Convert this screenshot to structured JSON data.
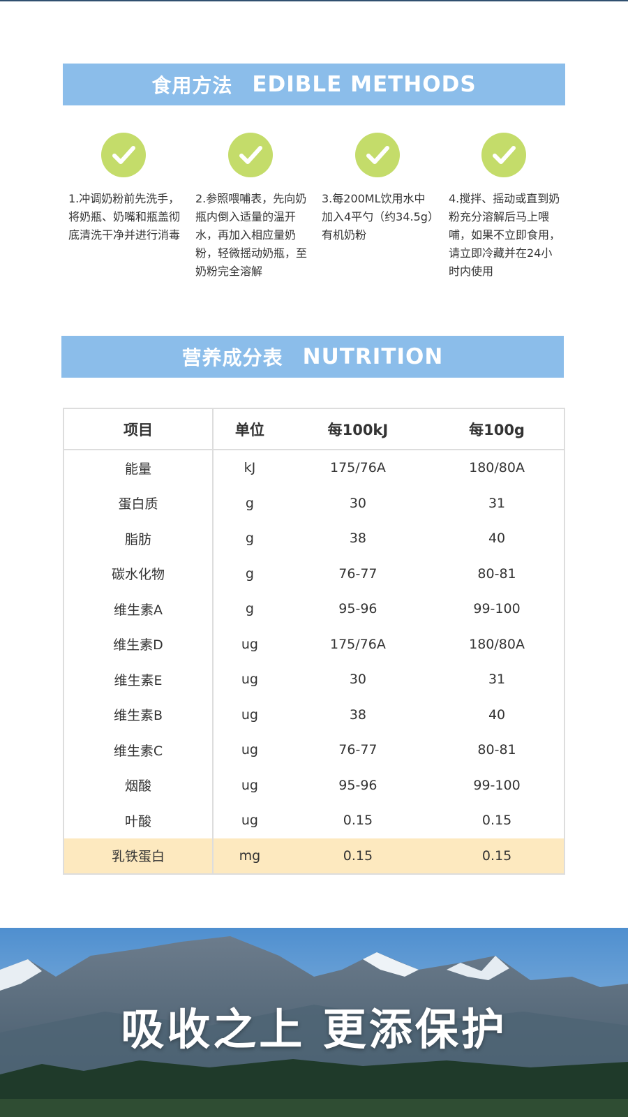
{
  "methods": {
    "title": "食用方法",
    "title_en": "EDIBLE METHODS",
    "steps": [
      "1.冲调奶粉前先洗手，将奶瓶、奶嘴和瓶盖彻底清洗干净并进行消毒",
      "2.参照喂哺表，先向奶瓶内倒入适量的温开水，再加入相应量奶粉，轻微摇动奶瓶，至奶粉完全溶解",
      "3.每200ML饮用水中加入4平勺（约34.5g）有机奶粉",
      "4.搅拌、摇动或直到奶粉充分溶解后马上喂哺，如果不立即食用，请立即冷藏并在24小时内使用"
    ]
  },
  "nutrition": {
    "title": "营养成分表",
    "title_en": "NUTRITION"
  },
  "table": {
    "header": [
      "项目",
      "单位",
      "每100kJ",
      "每100g"
    ],
    "rows": [
      [
        "能量",
        "kJ",
        "175/76A",
        "180/80A"
      ],
      [
        "蛋白质",
        "g",
        "30",
        "31"
      ],
      [
        "脂肪",
        "g",
        "38",
        "40"
      ],
      [
        "碳水化物",
        "g",
        "76-77",
        "80-81"
      ],
      [
        "维生素A",
        "g",
        "95-96",
        "99-100"
      ],
      [
        "维生素D",
        "ug",
        "175/76A",
        "180/80A"
      ],
      [
        "维生素E",
        "ug",
        "30",
        "31"
      ],
      [
        "维生素B",
        "ug",
        "38",
        "40"
      ],
      [
        "维生素C",
        "ug",
        "76-77",
        "80-81"
      ],
      [
        "烟酸",
        "ug",
        "95-96",
        "99-100"
      ],
      [
        "叶酸",
        "ug",
        "0.15",
        "0.15"
      ],
      [
        "乳铁蛋白",
        "mg",
        "0.15",
        "0.15"
      ]
    ]
  },
  "banner": {
    "text": "吸收之上 更添保护"
  }
}
